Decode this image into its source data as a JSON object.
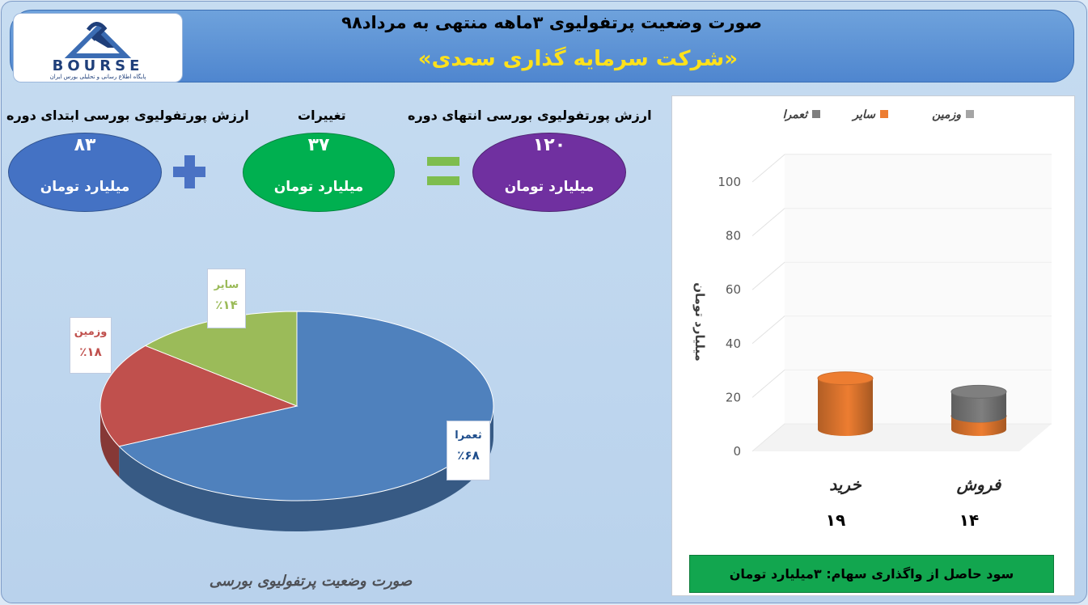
{
  "header": {
    "logo_text": "BOURSE",
    "logo_subtitle": "پایگاه اطلاع رسانی و تحلیلی بورس ایران",
    "title_line1": "صورت وضعیت پرتفولیوی ۳ماهه منتهی به مرداد۹۸",
    "title_line2": "«شرکت سرمایه گذاری سعدی»"
  },
  "summary": {
    "start": {
      "label": "ارزش پورتفولیوی بورسی ابتدای دوره",
      "value": "۸۳",
      "unit": "میلیارد تومان",
      "color": "#4472c4"
    },
    "change": {
      "label": "تغییرات",
      "value": "۳۷",
      "unit": "میلیارد تومان",
      "color": "#00b050"
    },
    "end": {
      "label": "ارزش پورتفولیوی بورسی انتهای دوره",
      "value": "۱۲۰",
      "unit": "میلیارد تومان",
      "color": "#7030a0"
    }
  },
  "footer_left": "صورت وضعیت پرتفولیوی بورسی",
  "profit_text": "سود حاصل از واگذاری سهام: ۳میلیارد تومان",
  "chart_data": [
    {
      "type": "pie",
      "categories": [
        "ثعمرا",
        "وزمین",
        "سایر"
      ],
      "values": [
        68,
        18,
        14
      ],
      "value_labels": [
        "٪۶۸",
        "٪۱۸",
        "٪۱۴"
      ],
      "colors": [
        "#4f81bd",
        "#c0504d",
        "#9bbb59"
      ],
      "label_colors": [
        "#1f4e8c",
        "#c0504d",
        "#9bbb59"
      ]
    },
    {
      "type": "bar",
      "stacked": true,
      "categories": [
        "خرید",
        "فروش"
      ],
      "category_totals": [
        "۱۹",
        "۱۴"
      ],
      "series": [
        {
          "name": "وزمین",
          "values": [
            0,
            0
          ],
          "color": "#a5a5a5"
        },
        {
          "name": "سایر",
          "values": [
            19,
            5
          ],
          "color": "#ed7d31"
        },
        {
          "name": "ثعمرا",
          "values": [
            0,
            9
          ],
          "color": "#7f7f7f"
        }
      ],
      "ylabel": "میلیارد تومان",
      "ylim": [
        0,
        100
      ],
      "yticks": [
        "0",
        "20",
        "40",
        "60",
        "80",
        "100"
      ],
      "legend_position": "top"
    }
  ]
}
